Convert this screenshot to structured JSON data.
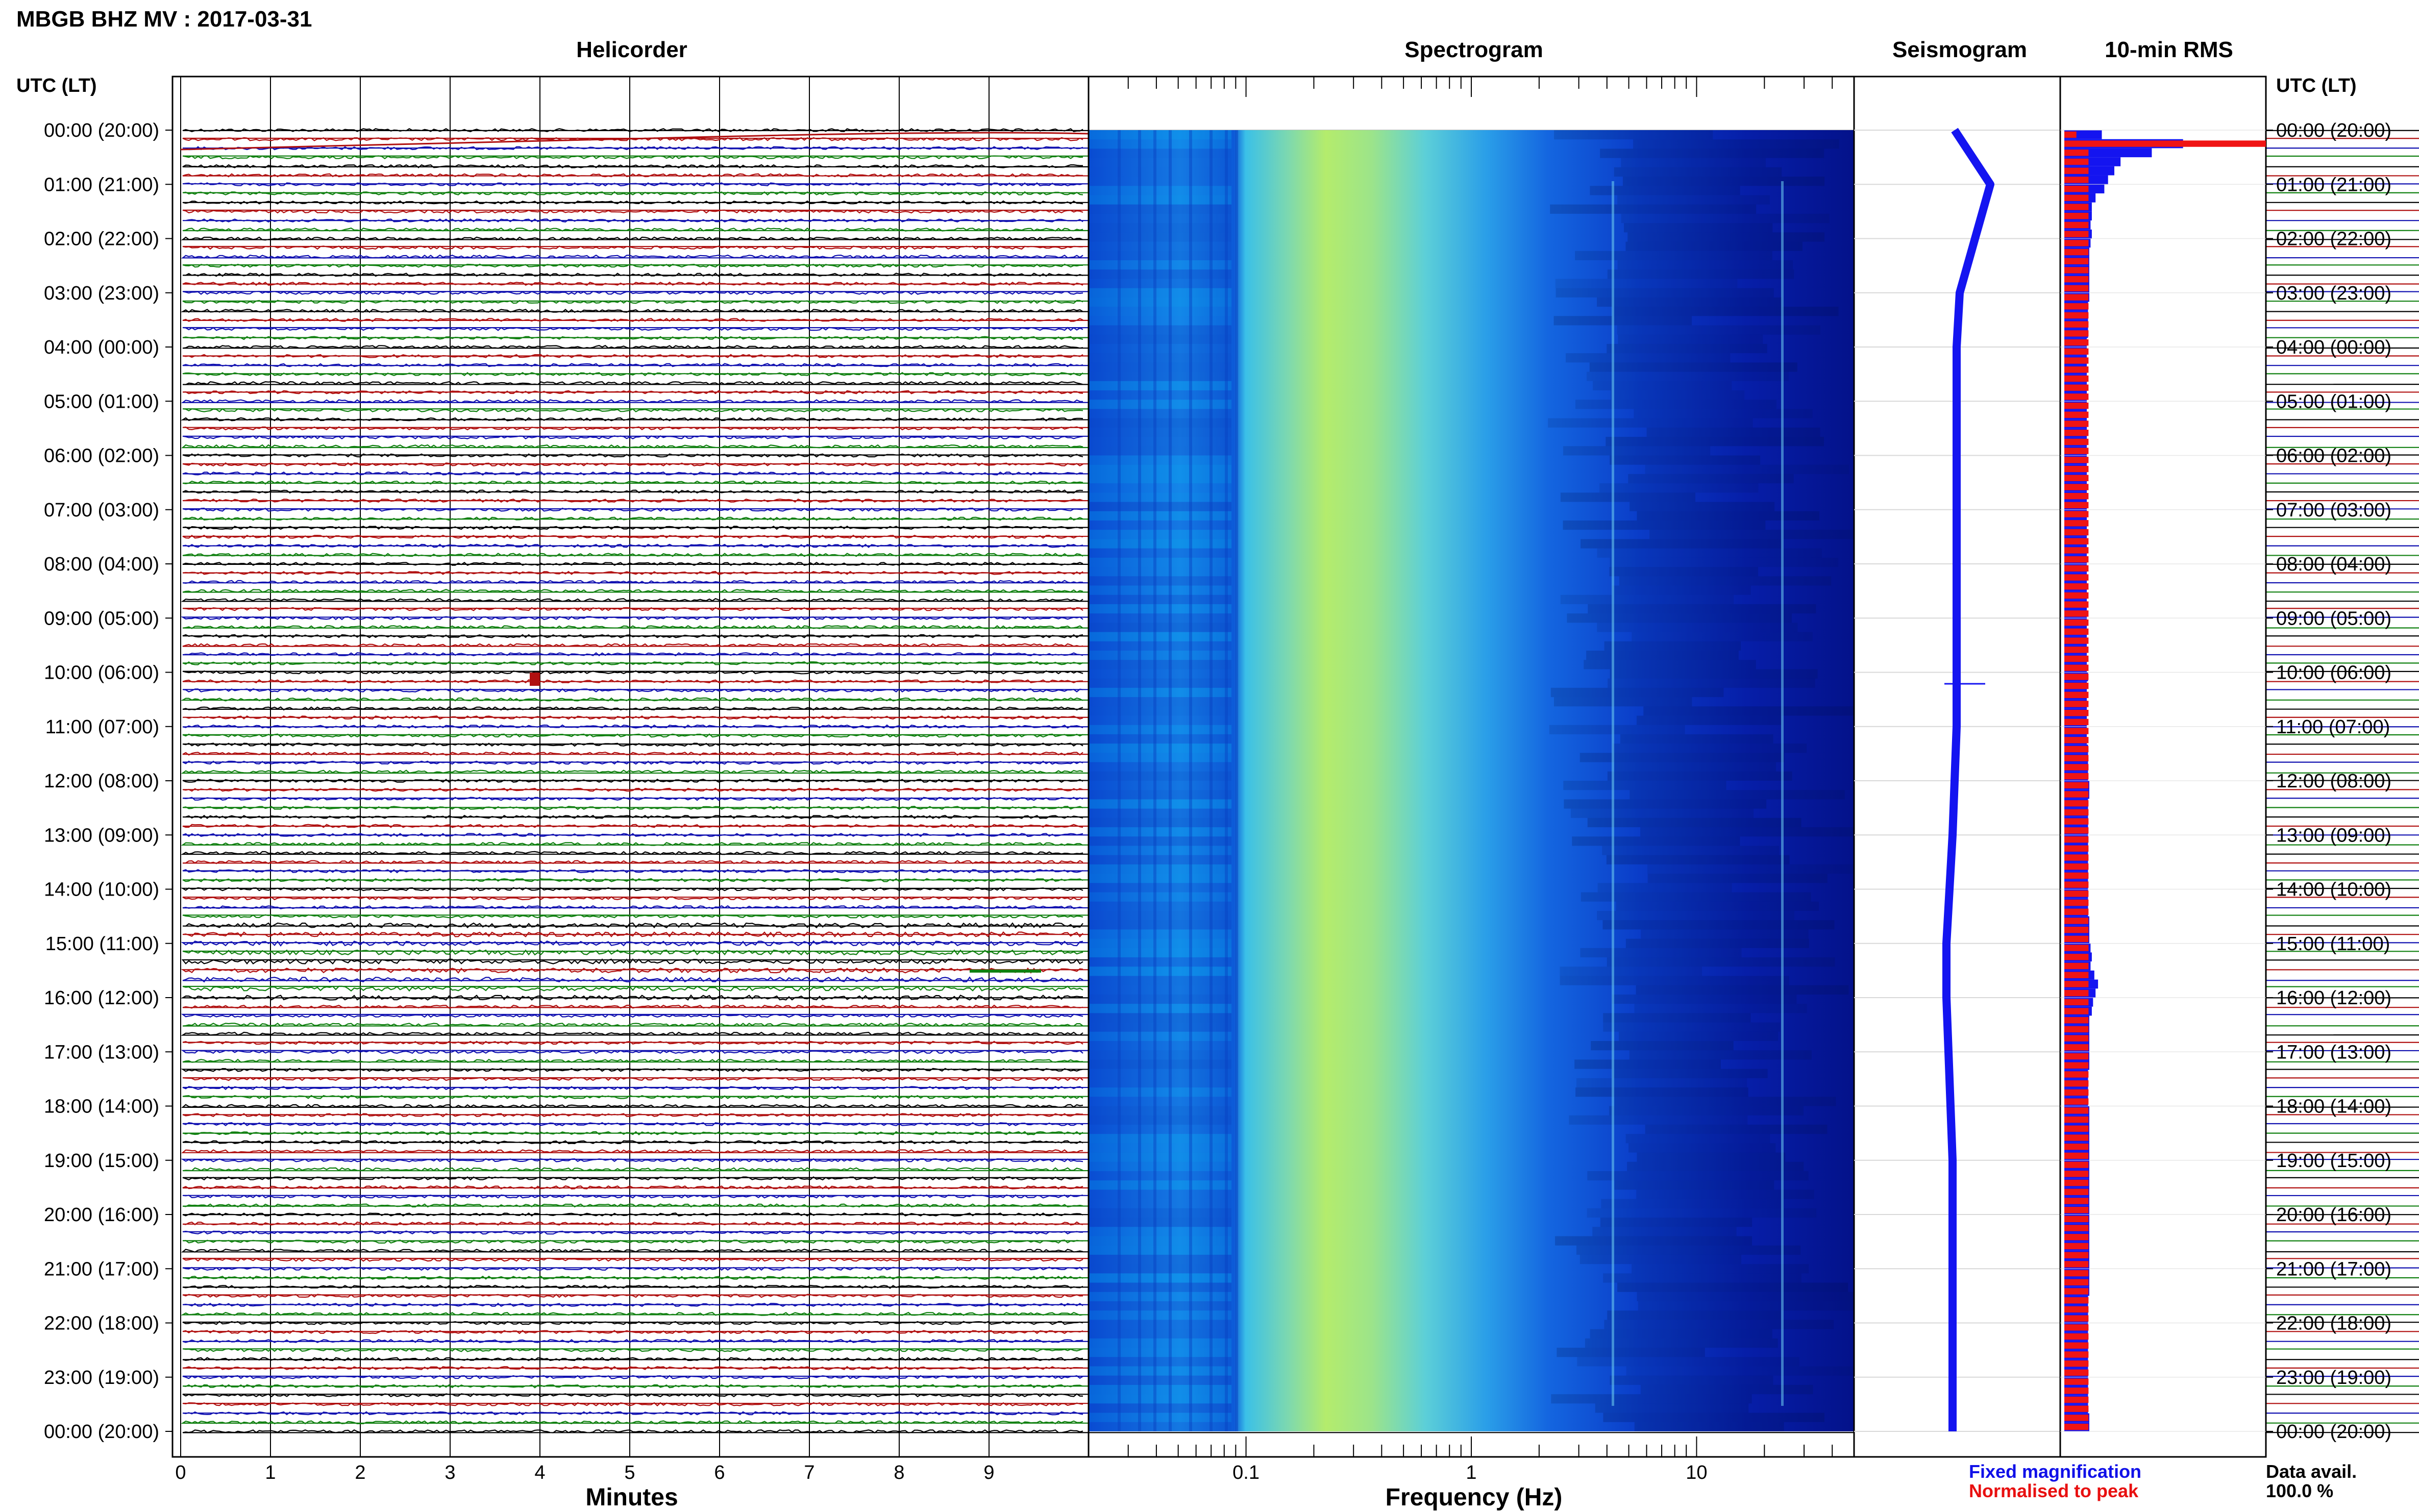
{
  "page_title": "MBGB BHZ MV : 2017-03-31",
  "panels": {
    "helicorder": "Helicorder",
    "spectrogram": "Spectrogram",
    "seismogram": "Seismogram",
    "rms": "10-min RMS"
  },
  "axis_header": "UTC (LT)",
  "time_labels": [
    "00:00 (20:00)",
    "01:00 (21:00)",
    "02:00 (22:00)",
    "03:00 (23:00)",
    "04:00 (00:00)",
    "05:00 (01:00)",
    "06:00 (02:00)",
    "07:00 (03:00)",
    "08:00 (04:00)",
    "09:00 (05:00)",
    "10:00 (06:00)",
    "11:00 (07:00)",
    "12:00 (08:00)",
    "13:00 (09:00)",
    "14:00 (10:00)",
    "15:00 (11:00)",
    "16:00 (12:00)",
    "17:00 (13:00)",
    "18:00 (14:00)",
    "19:00 (15:00)",
    "20:00 (16:00)",
    "21:00 (17:00)",
    "22:00 (18:00)",
    "23:00 (19:00)",
    "00:00 (20:00)"
  ],
  "helicorder_xlabel": "Minutes",
  "helicorder_ticks": [
    "0",
    "1",
    "2",
    "3",
    "4",
    "5",
    "6",
    "7",
    "8",
    "9"
  ],
  "spectrogram_xlabel": "Frequency (Hz)",
  "spectrogram_ticks": [
    "0.1",
    "1",
    "10"
  ],
  "legend": {
    "fixed": "Fixed magnification",
    "normalised": "Normalised to peak",
    "fixed_color": "#1010e8",
    "normalised_color": "#e81010"
  },
  "data_avail": {
    "label": "Data avail.",
    "value": "100.0 %"
  },
  "colors": {
    "trace_cycle": [
      "#000000",
      "#b01010",
      "#1010b0",
      "#108010"
    ],
    "spectrogram_low": "#00008c",
    "spectrogram_high": "#c8f050",
    "rms_fixed": "#1414f0",
    "rms_normalised": "#f01414"
  },
  "chart_data": {
    "type": "heatmap",
    "station": "MBGB",
    "channel": "BHZ",
    "network": "MV",
    "date": "2017-03-31",
    "hours": 24,
    "helicorder_xlim_minutes": [
      0,
      10
    ],
    "helicorder_lines": 144,
    "spectrogram_xlim_hz": [
      0.02,
      50
    ],
    "spectrogram_xscale": "log",
    "rms_bins": 144,
    "rms_fixed_relative": [
      0.3,
      0.95,
      0.7,
      0.45,
      0.4,
      0.35,
      0.32,
      0.25,
      0.22,
      0.22,
      0.21,
      0.22,
      0.21,
      0.2,
      0.2,
      0.2,
      0.2,
      0.2,
      0.2,
      0.19,
      0.19,
      0.19,
      0.19,
      0.18,
      0.18,
      0.18,
      0.18,
      0.18,
      0.18,
      0.18,
      0.18,
      0.18,
      0.18,
      0.18,
      0.18,
      0.18,
      0.18,
      0.18,
      0.18,
      0.18,
      0.18,
      0.18,
      0.18,
      0.18,
      0.18,
      0.18,
      0.18,
      0.18,
      0.18,
      0.18,
      0.18,
      0.18,
      0.18,
      0.18,
      0.18,
      0.18,
      0.18,
      0.18,
      0.18,
      0.18,
      0.19,
      0.18,
      0.18,
      0.18,
      0.18,
      0.18,
      0.18,
      0.18,
      0.19,
      0.19,
      0.19,
      0.19,
      0.2,
      0.2,
      0.19,
      0.19,
      0.19,
      0.19,
      0.19,
      0.19,
      0.19,
      0.19,
      0.19,
      0.19,
      0.19,
      0.19,
      0.19,
      0.2,
      0.2,
      0.2,
      0.21,
      0.22,
      0.21,
      0.24,
      0.27,
      0.25,
      0.23,
      0.22,
      0.2,
      0.2,
      0.2,
      0.2,
      0.2,
      0.2,
      0.19,
      0.19,
      0.19,
      0.19,
      0.2,
      0.2,
      0.2,
      0.2,
      0.2,
      0.2,
      0.2,
      0.2,
      0.2,
      0.2,
      0.2,
      0.2,
      0.2,
      0.2,
      0.2,
      0.2,
      0.2,
      0.2,
      0.2,
      0.2,
      0.2,
      0.19,
      0.19,
      0.19,
      0.19,
      0.19,
      0.19,
      0.19,
      0.19,
      0.19,
      0.19,
      0.19,
      0.19,
      0.19,
      0.2,
      0.2
    ],
    "rms_normalised_relative": [
      0.06,
      1.0,
      0.12,
      0.12,
      0.12,
      0.12,
      0.12,
      0.12,
      0.12,
      0.12,
      0.12,
      0.12,
      0.12,
      0.12,
      0.12,
      0.12,
      0.12,
      0.12,
      0.12,
      0.12,
      0.12,
      0.12,
      0.12,
      0.12,
      0.12,
      0.12,
      0.12,
      0.12,
      0.12,
      0.12,
      0.12,
      0.12,
      0.12,
      0.12,
      0.12,
      0.12,
      0.12,
      0.12,
      0.12,
      0.12,
      0.12,
      0.12,
      0.12,
      0.12,
      0.12,
      0.12,
      0.12,
      0.12,
      0.12,
      0.12,
      0.12,
      0.12,
      0.12,
      0.12,
      0.12,
      0.12,
      0.12,
      0.12,
      0.12,
      0.12,
      0.12,
      0.12,
      0.12,
      0.12,
      0.12,
      0.12,
      0.12,
      0.12,
      0.12,
      0.12,
      0.12,
      0.12,
      0.12,
      0.12,
      0.12,
      0.12,
      0.12,
      0.12,
      0.12,
      0.12,
      0.12,
      0.12,
      0.12,
      0.12,
      0.12,
      0.12,
      0.12,
      0.12,
      0.12,
      0.12,
      0.12,
      0.12,
      0.12,
      0.12,
      0.12,
      0.12,
      0.12,
      0.12,
      0.12,
      0.12,
      0.12,
      0.12,
      0.12,
      0.12,
      0.12,
      0.12,
      0.12,
      0.12,
      0.12,
      0.12,
      0.12,
      0.12,
      0.12,
      0.12,
      0.12,
      0.12,
      0.12,
      0.12,
      0.12,
      0.12,
      0.12,
      0.12,
      0.12,
      0.12,
      0.12,
      0.12,
      0.12,
      0.12,
      0.12,
      0.12,
      0.12,
      0.12,
      0.12,
      0.12,
      0.12,
      0.12,
      0.12,
      0.12,
      0.12,
      0.12,
      0.12,
      0.12,
      0.12,
      0.12
    ],
    "seismogram_offset_relative": [
      0.0,
      0.35,
      0.2,
      0.05,
      0.02,
      0.02,
      0.02,
      0.02,
      0.02,
      0.02,
      0.02,
      0.02,
      0.0,
      -0.02,
      -0.05,
      -0.08,
      -0.08,
      -0.06,
      -0.04,
      -0.02,
      -0.02,
      -0.02,
      -0.02,
      -0.02,
      -0.02
    ]
  }
}
